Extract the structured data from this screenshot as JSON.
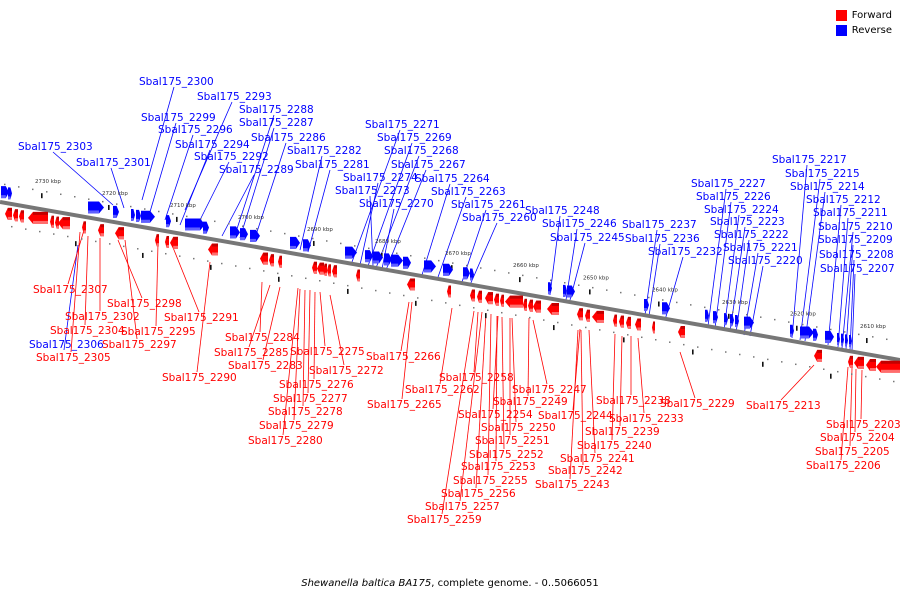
{
  "legend": {
    "forward_label": "Forward",
    "reverse_label": "Reverse",
    "forward_color": "#ff0000",
    "reverse_color": "#0000ff"
  },
  "caption": {
    "organism": "Shewanella baltica BA175",
    "rest": ", complete genome. - 0..5066051"
  },
  "colors": {
    "forward": "#ff0000",
    "reverse": "#0000ff",
    "axis": "#666666"
  },
  "scale_labels": [
    "2730 kbp",
    "2720 kbp",
    "2710 kbp",
    "2700 kbp",
    "2690 kbp",
    "2680 kbp",
    "2670 kbp",
    "2660 kbp",
    "2650 kbp",
    "2640 kbp",
    "2630 kbp",
    "2620 kbp",
    "2610 kbp"
  ],
  "reverse_labels": [
    "Sbal175_2300",
    "Sbal175_2293",
    "Sbal175_2288",
    "Sbal175_2299",
    "Sbal175_2287",
    "Sbal175_2296",
    "Sbal175_2286",
    "Sbal175_2303",
    "Sbal175_2294",
    "Sbal175_2282",
    "Sbal175_2292",
    "Sbal175_2301",
    "Sbal175_2281",
    "Sbal175_2289",
    "Sbal175_2271",
    "Sbal175_2269",
    "Sbal175_2268",
    "Sbal175_2267",
    "Sbal175_2274",
    "Sbal175_2264",
    "Sbal175_2273",
    "Sbal175_2263",
    "Sbal175_2270",
    "Sbal175_2261",
    "Sbal175_2260",
    "Sbal175_2248",
    "Sbal175_2246",
    "Sbal175_2245",
    "Sbal175_2237",
    "Sbal175_2236",
    "Sbal175_2232",
    "Sbal175_2227",
    "Sbal175_2226",
    "Sbal175_2224",
    "Sbal175_2223",
    "Sbal175_2222",
    "Sbal175_2221",
    "Sbal175_2220",
    "Sbal175_2217",
    "Sbal175_2215",
    "Sbal175_2214",
    "Sbal175_2212",
    "Sbal175_2211",
    "Sbal175_2210",
    "Sbal175_2209",
    "Sbal175_2208",
    "Sbal175_2207",
    "Sbal175_2306"
  ],
  "forward_labels": [
    "Sbal175_2307",
    "Sbal175_2298",
    "Sbal175_2302",
    "Sbal175_2291",
    "Sbal175_2304",
    "Sbal175_2295",
    "Sbal175_2297",
    "Sbal175_2305",
    "Sbal175_2290",
    "Sbal175_2284",
    "Sbal175_2285",
    "Sbal175_2283",
    "Sbal175_2275",
    "Sbal175_2272",
    "Sbal175_2276",
    "Sbal175_2277",
    "Sbal175_2278",
    "Sbal175_2279",
    "Sbal175_2280",
    "Sbal175_2266",
    "Sbal175_2265",
    "Sbal175_2262",
    "Sbal175_2258",
    "Sbal175_2247",
    "Sbal175_2249",
    "Sbal175_2254",
    "Sbal175_2250",
    "Sbal175_2251",
    "Sbal175_2252",
    "Sbal175_2253",
    "Sbal175_2255",
    "Sbal175_2256",
    "Sbal175_2257",
    "Sbal175_2259",
    "Sbal175_2244",
    "Sbal175_2241",
    "Sbal175_2242",
    "Sbal175_2243",
    "Sbal175_2238",
    "Sbal175_2233",
    "Sbal175_2239",
    "Sbal175_2240",
    "Sbal175_2229",
    "Sbal175_2213",
    "Sbal175_2203",
    "Sbal175_2204",
    "Sbal175_2205",
    "Sbal175_2206"
  ]
}
